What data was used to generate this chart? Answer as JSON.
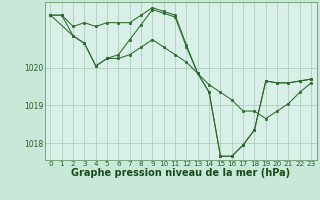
{
  "background_color": "#c8e8d8",
  "plot_bg_color": "#d8f0e8",
  "line_color": "#2d6a2d",
  "grid_color": "#a8c8b8",
  "xlabel": "Graphe pression niveau de la mer (hPa)",
  "xlabel_fontsize": 7,
  "ylabel_values": [
    1018,
    1019,
    1020
  ],
  "xlim": [
    -0.5,
    23.5
  ],
  "ylim": [
    1017.55,
    1021.75
  ],
  "x_ticks": [
    0,
    1,
    2,
    3,
    4,
    5,
    6,
    7,
    8,
    9,
    10,
    11,
    12,
    13,
    14,
    15,
    16,
    17,
    18,
    19,
    20,
    21,
    22,
    23
  ],
  "tick_fontsize": 5.2,
  "series": [
    {
      "x": [
        0,
        1,
        2,
        3,
        4,
        5,
        6,
        7,
        8,
        9,
        10,
        11,
        12,
        13,
        14,
        15,
        16,
        17,
        18,
        19,
        20,
        21,
        22,
        23
      ],
      "y": [
        1021.4,
        1021.4,
        1021.1,
        1021.2,
        1021.1,
        1021.2,
        1021.2,
        1021.2,
        1021.4,
        1021.6,
        1021.5,
        1021.4,
        1020.6,
        1019.85,
        1019.35,
        1017.65,
        1017.65,
        1017.95,
        1018.35,
        1019.65,
        1019.6,
        1019.6,
        1019.65,
        1019.7
      ]
    },
    {
      "x": [
        0,
        1,
        2,
        3,
        4,
        5,
        6,
        7,
        8,
        9,
        10,
        11,
        12,
        13,
        14,
        15,
        16,
        17,
        18,
        19,
        20,
        21,
        22,
        23
      ],
      "y": [
        1021.4,
        1021.4,
        1020.85,
        1020.65,
        1020.05,
        1020.25,
        1020.25,
        1020.35,
        1020.55,
        1020.75,
        1020.55,
        1020.35,
        1020.15,
        1019.85,
        1019.55,
        1019.35,
        1019.15,
        1018.85,
        1018.85,
        1018.65,
        1018.85,
        1019.05,
        1019.35,
        1019.6
      ]
    },
    {
      "x": [
        0,
        2,
        3,
        4,
        5,
        6,
        7,
        8,
        9,
        10,
        11,
        12,
        13,
        14,
        15,
        16,
        17,
        18,
        19,
        20,
        21,
        22,
        23
      ],
      "y": [
        1021.4,
        1020.85,
        1020.65,
        1020.05,
        1020.25,
        1020.35,
        1020.75,
        1021.15,
        1021.55,
        1021.45,
        1021.35,
        1020.55,
        1019.85,
        1019.35,
        1017.65,
        1017.65,
        1017.95,
        1018.35,
        1019.65,
        1019.6,
        1019.6,
        1019.65,
        1019.7
      ]
    }
  ]
}
